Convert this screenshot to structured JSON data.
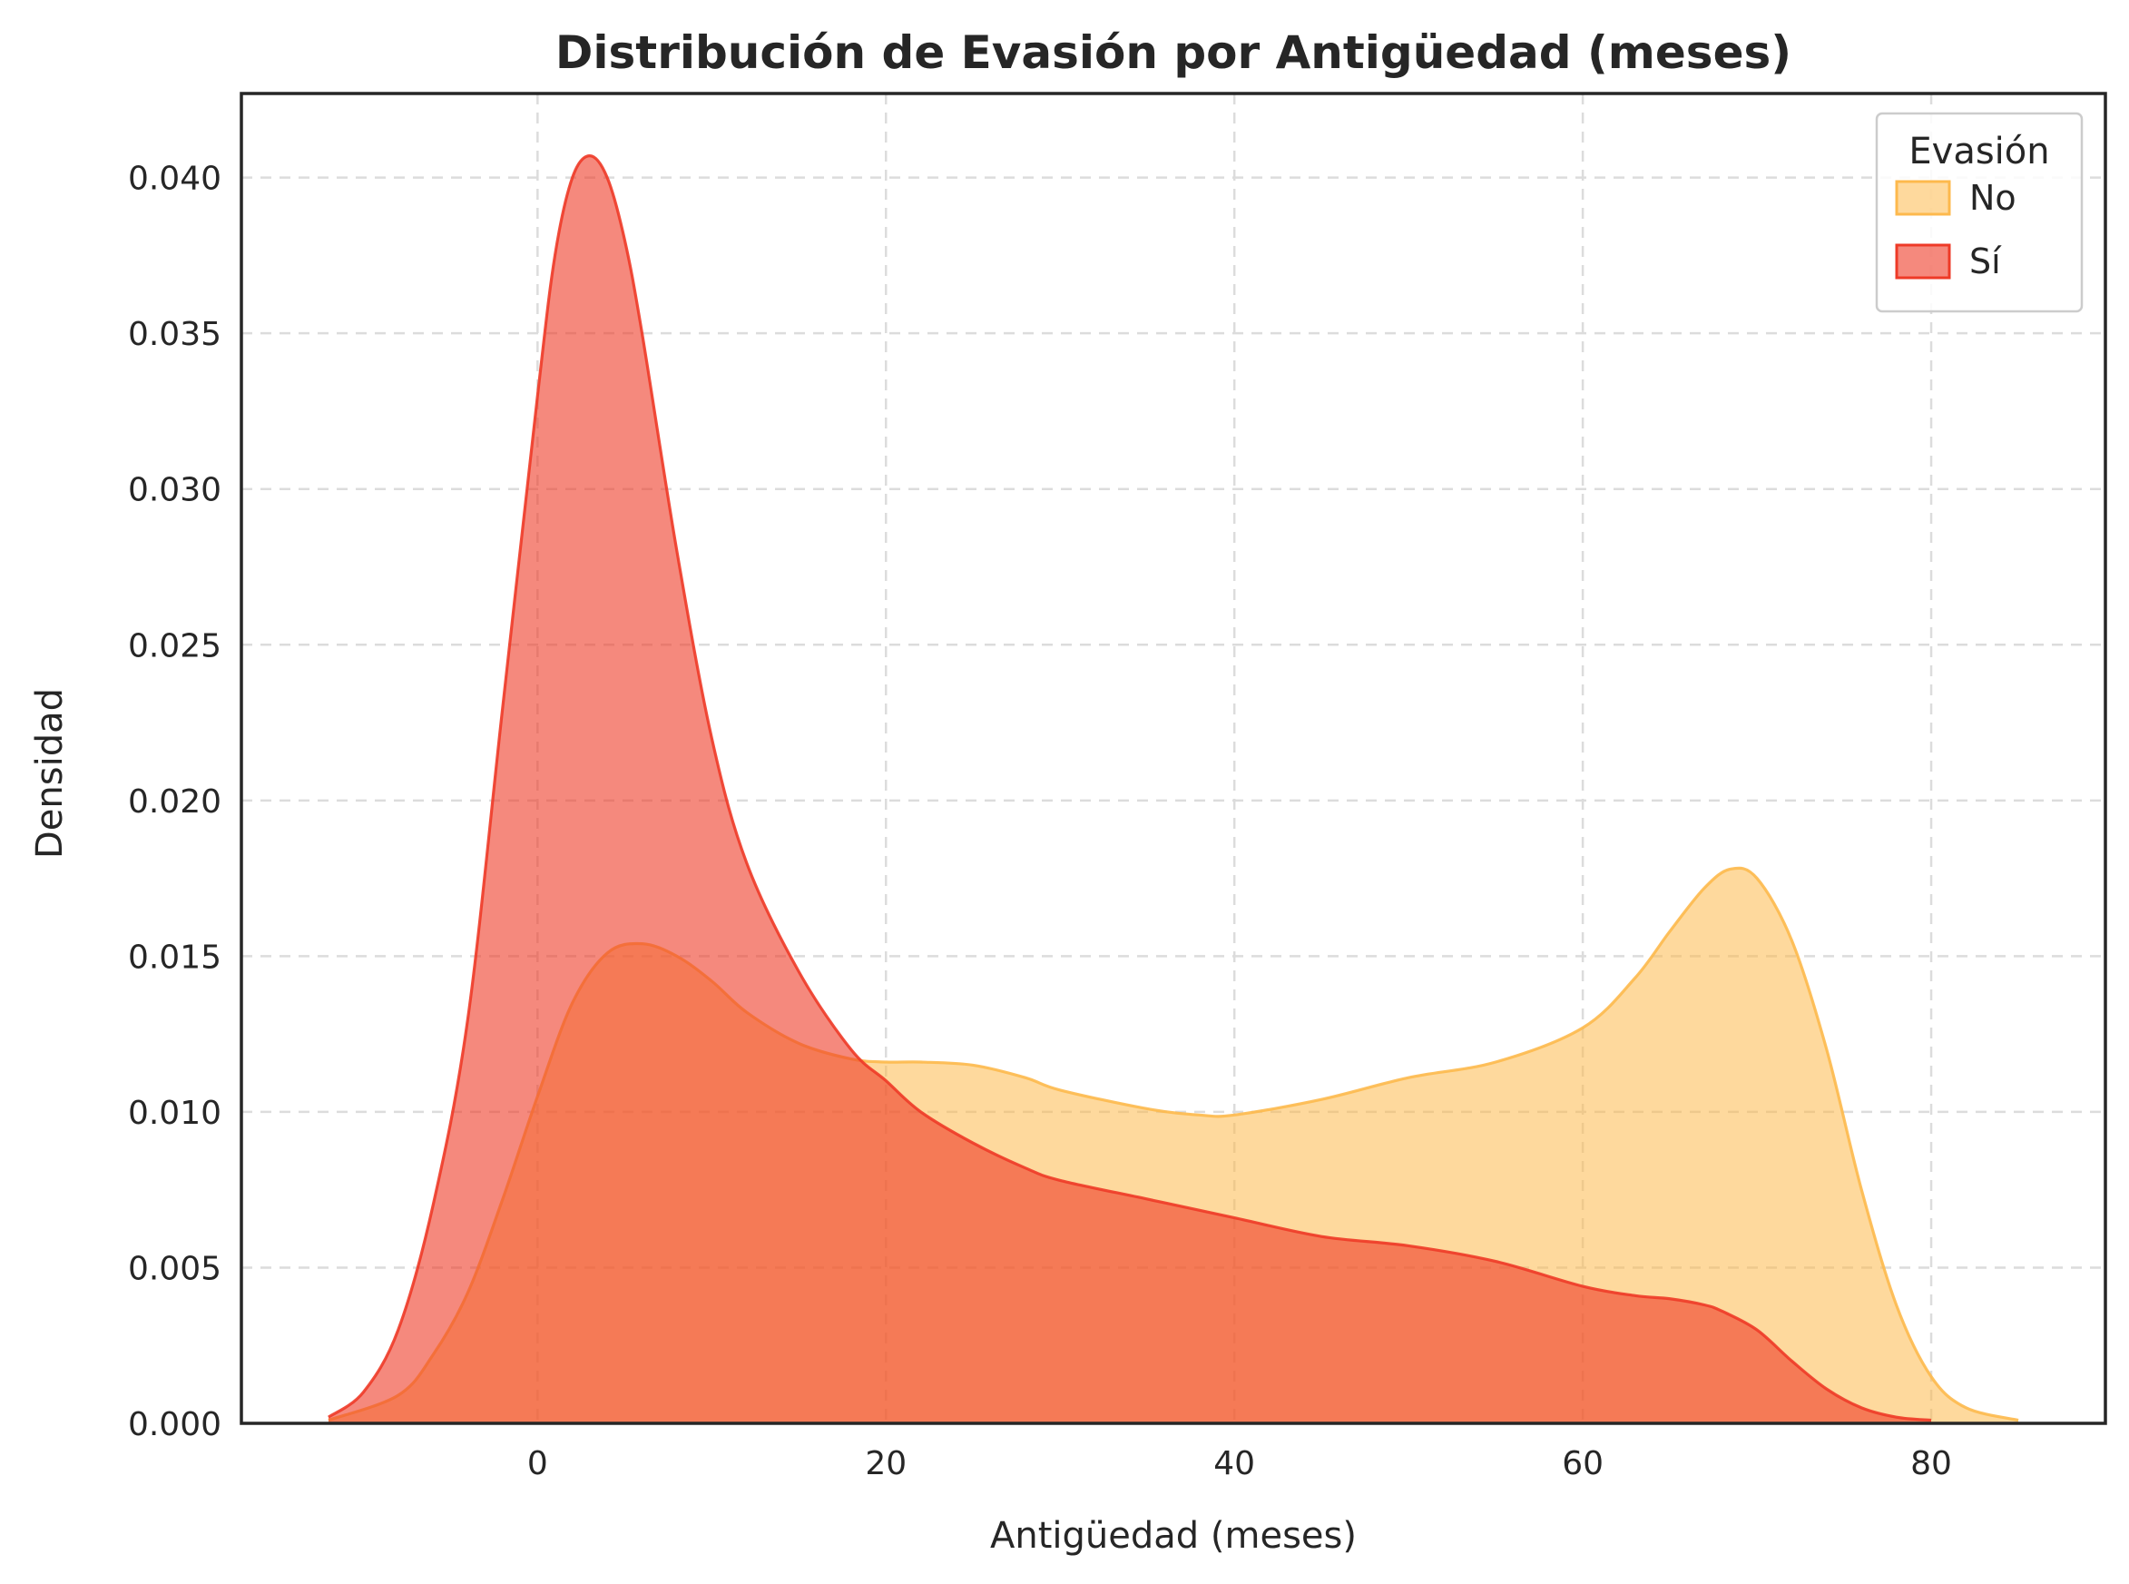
{
  "chart_data": {
    "type": "area",
    "title": "Distribución de Evasión por Antigüedad (meses)",
    "xlabel": "Antigüedad (meses)",
    "ylabel": "Densidad",
    "xlim": [
      -17,
      90
    ],
    "ylim": [
      0,
      0.0427
    ],
    "xticks": [
      0,
      20,
      40,
      60,
      80
    ],
    "xtick_labels": [
      "0",
      "20",
      "40",
      "60",
      "80"
    ],
    "yticks": [
      0.0,
      0.005,
      0.01,
      0.015,
      0.02,
      0.025,
      0.03,
      0.035,
      0.04
    ],
    "ytick_labels": [
      "0.000",
      "0.005",
      "0.010",
      "0.015",
      "0.020",
      "0.025",
      "0.030",
      "0.035",
      "0.040"
    ],
    "grid": true,
    "legend": {
      "title": "Evasión",
      "placement": "top-right"
    },
    "series": [
      {
        "name": "No",
        "color": "#fdb94d",
        "fill_opacity": 0.55,
        "x": [
          -12,
          -8,
          -6,
          -4,
          -2,
          0,
          2,
          4,
          6,
          8,
          10,
          12,
          15,
          18,
          20,
          22,
          25,
          28,
          30,
          35,
          38,
          40,
          45,
          50,
          55,
          60,
          63,
          65,
          67,
          68.5,
          70,
          72,
          74,
          76,
          78,
          80,
          82,
          85
        ],
        "y": [
          0.0001,
          0.0009,
          0.0022,
          0.0042,
          0.0072,
          0.0105,
          0.0135,
          0.0151,
          0.0154,
          0.015,
          0.0142,
          0.0132,
          0.0122,
          0.0117,
          0.0116,
          0.0116,
          0.0115,
          0.0111,
          0.0107,
          0.0101,
          0.0099,
          0.0099,
          0.0104,
          0.0111,
          0.0116,
          0.0127,
          0.0143,
          0.0158,
          0.0172,
          0.0178,
          0.0175,
          0.0155,
          0.012,
          0.0075,
          0.0038,
          0.0015,
          0.0005,
          0.0001
        ]
      },
      {
        "name": "Sí",
        "color": "#ee3a27",
        "fill_opacity": 0.6,
        "x": [
          -12,
          -10,
          -8,
          -6,
          -4,
          -2,
          0,
          1,
          2,
          3,
          4,
          5,
          6,
          8,
          10,
          12,
          15,
          18,
          20,
          22,
          25,
          28,
          30,
          35,
          40,
          45,
          50,
          55,
          60,
          63,
          65,
          67,
          68,
          70,
          72,
          74,
          76,
          78,
          80
        ],
        "y": [
          0.0002,
          0.001,
          0.003,
          0.007,
          0.013,
          0.023,
          0.033,
          0.0375,
          0.04,
          0.0407,
          0.04,
          0.038,
          0.035,
          0.028,
          0.022,
          0.018,
          0.0145,
          0.012,
          0.011,
          0.01,
          0.009,
          0.0082,
          0.0078,
          0.0072,
          0.0066,
          0.006,
          0.0057,
          0.0052,
          0.0044,
          0.0041,
          0.004,
          0.0038,
          0.0036,
          0.003,
          0.002,
          0.0011,
          0.0005,
          0.0002,
          0.0001
        ]
      }
    ]
  }
}
